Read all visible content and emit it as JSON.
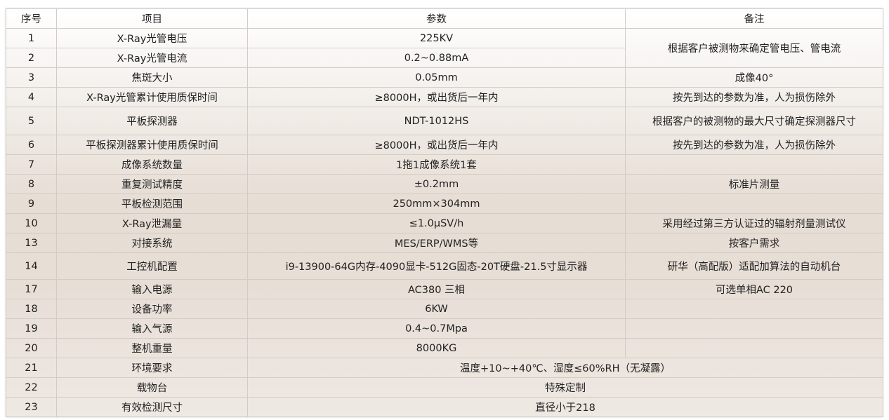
{
  "header": [
    "序号",
    "项目",
    "参数",
    "备注"
  ],
  "rows": [
    {
      "no": "1",
      "item": "X-Ray光管电压",
      "param": "225KV",
      "note": "根据客户被测物来确定管电压、管电流"
    },
    {
      "no": "2",
      "item": "X-Ray光管电流",
      "param": "0.2~0.88mA"
    },
    {
      "no": "3",
      "item": "焦斑大小",
      "param": "0.05mm",
      "note": "成像40°"
    },
    {
      "no": "4",
      "item": "X-Ray光管累计使用质保时间",
      "param": "≥8000H，或出货后一年内",
      "note": "按先到达的参数为准，人为损伤除外"
    },
    {
      "no": "5",
      "item": "平板探测器",
      "param": "NDT-1012HS",
      "note": "根据客户的被测物的最大尺寸确定探测器尺寸"
    },
    {
      "no": "6",
      "item": "平板探测器累计使用质保时间",
      "param": "≥8000H，或出货后一年内",
      "note": "按先到达的参数为准，人为损伤除外"
    },
    {
      "no": "7",
      "item": "成像系统数量",
      "param": "1拖1成像系统1套",
      "note": ""
    },
    {
      "no": "8",
      "item": "重复测试精度",
      "param": "±0.2mm",
      "note": "标准片测量"
    },
    {
      "no": "9",
      "item": "平板检测范围",
      "param": "250mm×304mm",
      "note": ""
    },
    {
      "no": "10",
      "item": "X-Ray泄漏量",
      "param": "≤1.0μSV/h",
      "note": "采用经过第三方认证过的辐射剂量测试仪"
    },
    {
      "no": "13",
      "item": "对接系统",
      "param": "MES/ERP/WMS等",
      "note": "按客户需求"
    },
    {
      "no": "14",
      "item": "工控机配置",
      "param": "i9-13900-64G内存-4090显卡-512G固态-20T硬盘-21.5寸显示器",
      "note": "研华（高配版）适配加算法的自动机台"
    },
    {
      "no": "17",
      "item": "输入电源",
      "param": "AC380 三相",
      "note": "可选单相AC 220"
    },
    {
      "no": "18",
      "item": "设备功率",
      "param": "6KW",
      "note": ""
    },
    {
      "no": "19",
      "item": "输入气源",
      "param": "0.4~0.7Mpa",
      "note": ""
    },
    {
      "no": "20",
      "item": "整机重量",
      "param": "8000KG",
      "note": ""
    },
    {
      "no": "21",
      "item": "环境要求",
      "param": "温度+10~+40℃、湿度≤60%RH（无凝露）"
    },
    {
      "no": "22",
      "item": "载物台",
      "param": "特殊定制"
    },
    {
      "no": "23",
      "item": "有效检测尺寸",
      "param": "直径小于218"
    }
  ]
}
